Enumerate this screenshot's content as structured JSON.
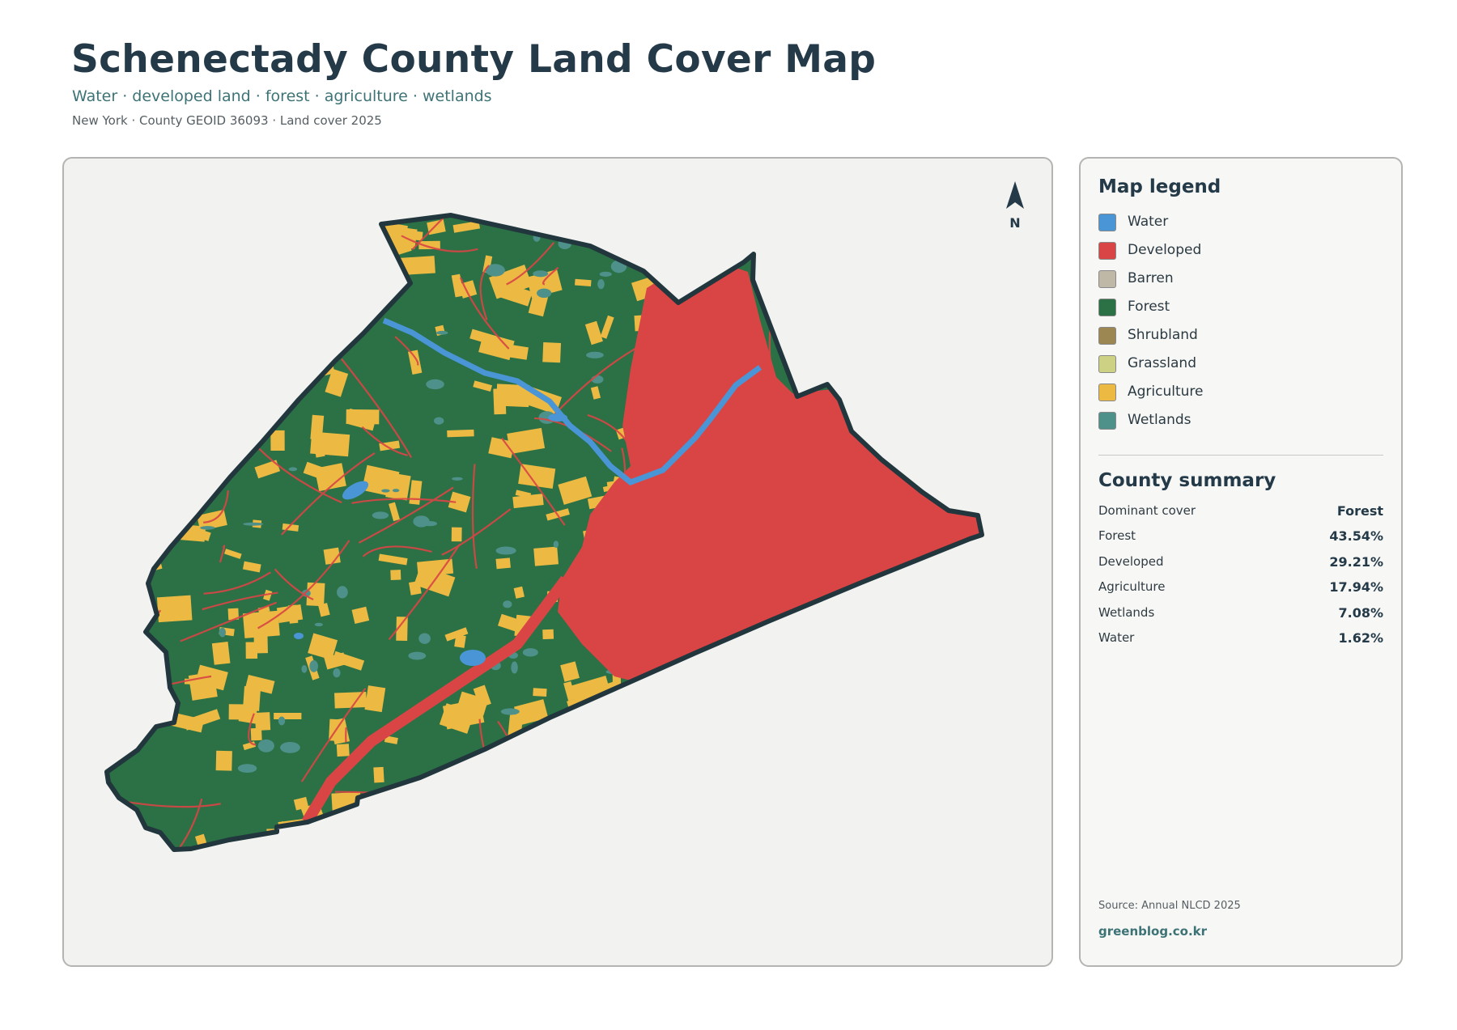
{
  "header": {
    "title": "Schenectady County Land Cover Map",
    "subtitle": "Water · developed land · forest · agriculture · wetlands",
    "meta": "New York · County GEOID 36093 · Land cover 2025"
  },
  "map": {
    "north_label": "N",
    "colors": {
      "water": "#4a95d6",
      "developed": "#d94545",
      "barren": "#bfb8a6",
      "forest": "#2b7145",
      "shrubland": "#9c8652",
      "grassland": "#cdd184",
      "agriculture": "#ecb943",
      "wetlands": "#4e918a",
      "boundary": "#22363d",
      "panel_bg": "#f2f2f0"
    }
  },
  "legend": {
    "title": "Map legend",
    "items": [
      {
        "label": "Water",
        "color": "#4a95d6"
      },
      {
        "label": "Developed",
        "color": "#d94545"
      },
      {
        "label": "Barren",
        "color": "#bfb8a6"
      },
      {
        "label": "Forest",
        "color": "#2b7145"
      },
      {
        "label": "Shrubland",
        "color": "#9c8652"
      },
      {
        "label": "Grassland",
        "color": "#cdd184"
      },
      {
        "label": "Agriculture",
        "color": "#ecb943"
      },
      {
        "label": "Wetlands",
        "color": "#4e918a"
      }
    ]
  },
  "summary": {
    "title": "County summary",
    "rows": [
      {
        "label": "Dominant cover",
        "value": "Forest"
      },
      {
        "label": "Forest",
        "value": "43.54%"
      },
      {
        "label": "Developed",
        "value": "29.21%"
      },
      {
        "label": "Agriculture",
        "value": "17.94%"
      },
      {
        "label": "Wetlands",
        "value": "7.08%"
      },
      {
        "label": "Water",
        "value": "1.62%"
      }
    ]
  },
  "footer": {
    "source": "Source: Annual NLCD 2025",
    "site": "greenblog.co.kr"
  }
}
